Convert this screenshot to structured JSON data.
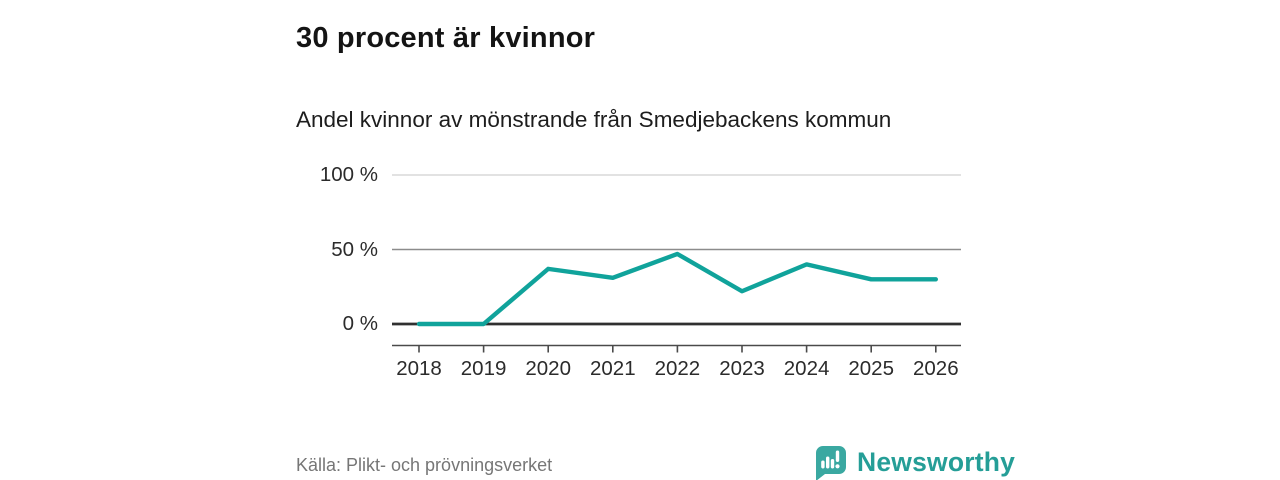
{
  "header": {
    "title": "30 procent är kvinnor",
    "subtitle": "Andel kvinnor av mönstrande från Smedjebackens kommun"
  },
  "chart_data": {
    "type": "line",
    "title": "30 procent är kvinnor",
    "subtitle": "Andel kvinnor av mönstrande från Smedjebackens kommun",
    "categories": [
      "2018",
      "2019",
      "2020",
      "2021",
      "2022",
      "2023",
      "2024",
      "2025",
      "2026"
    ],
    "series": [
      {
        "name": "Andel kvinnor av mönstrande",
        "values": [
          0,
          0,
          37,
          31,
          47,
          22,
          40,
          30,
          30
        ]
      }
    ],
    "unit": "%",
    "ylim": [
      0,
      100
    ],
    "y_ticks": [
      {
        "value": 0,
        "label": "0 %"
      },
      {
        "value": 50,
        "label": "50 %"
      },
      {
        "value": 100,
        "label": "100 %"
      }
    ],
    "grid": "horizontal",
    "legend": "none",
    "line_color": "#10a39b"
  },
  "footer": {
    "source": "Källa: Plikt- och prövningsverket",
    "brand": "Newsworthy"
  },
  "colors": {
    "accent_teal": "#10a39b",
    "logo_badge_teal": "#3aa8a1",
    "wordmark_teal": "#259e97",
    "text_dark": "#1d1d1d",
    "muted_text": "#767676",
    "grid_light": "#d9d9d9",
    "grid_mid": "#8c8c8c",
    "zero_line": "#303030",
    "axis_gray": "#4a4a4a"
  }
}
